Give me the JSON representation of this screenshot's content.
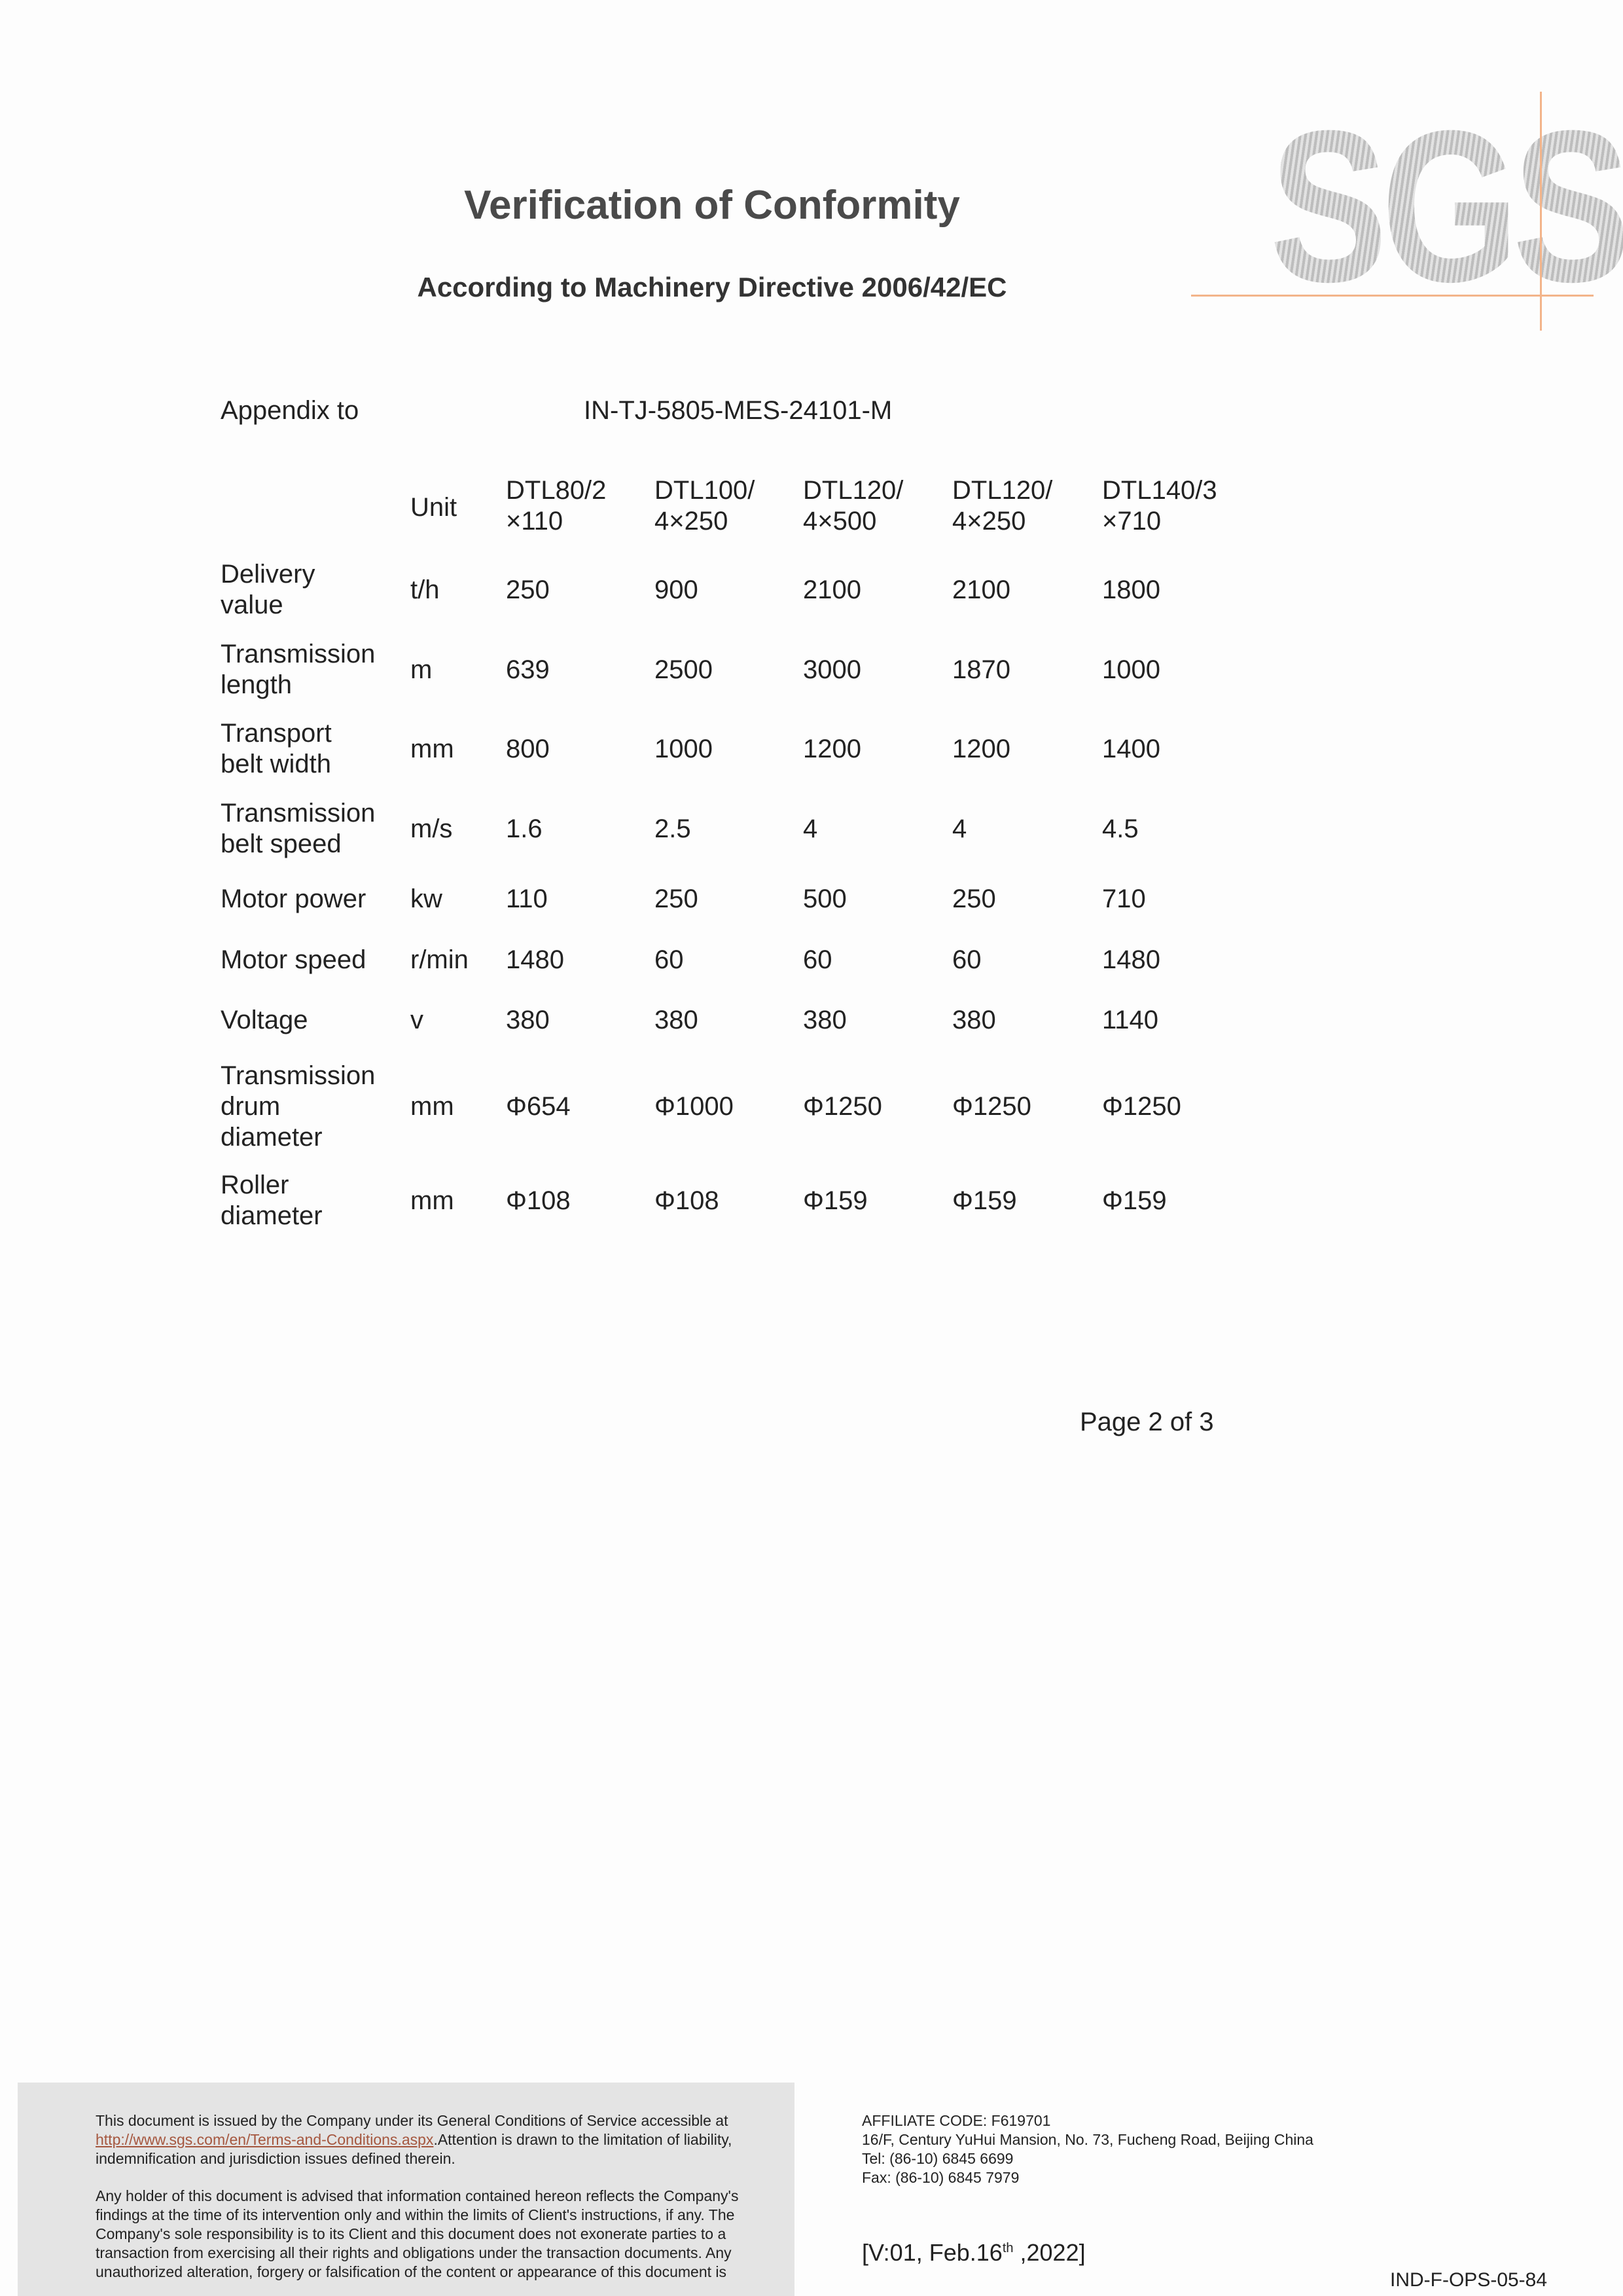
{
  "logo": {
    "text": "SGS",
    "accent": "#f3b48a"
  },
  "header": {
    "title": "Verification of Conformity",
    "subtitle": "According to Machinery Directive 2006/42/EC"
  },
  "appendix": {
    "label": "Appendix to",
    "value": "IN-TJ-5805-MES-24101-M"
  },
  "table": {
    "unit_header": "Unit",
    "columns": [
      {
        "line1": "DTL80/2",
        "line2": "×110"
      },
      {
        "line1": "DTL100/",
        "line2": "4×250"
      },
      {
        "line1": "DTL120/",
        "line2": "4×500"
      },
      {
        "line1": "DTL120/",
        "line2": "4×250"
      },
      {
        "line1": "DTL140/3",
        "line2": "×710"
      }
    ],
    "rows": [
      {
        "label": [
          "Delivery",
          "value"
        ],
        "unit": "t/h",
        "values": [
          "250",
          "900",
          "2100",
          "2100",
          "1800"
        ]
      },
      {
        "label": [
          "Transmission",
          "length"
        ],
        "unit": "m",
        "values": [
          "639",
          "2500",
          "3000",
          "1870",
          "1000"
        ]
      },
      {
        "label": [
          "Transport",
          "belt width"
        ],
        "unit": "mm",
        "values": [
          "800",
          "1000",
          "1200",
          "1200",
          "1400"
        ]
      },
      {
        "label": [
          "Transmission",
          "belt speed"
        ],
        "unit": "m/s",
        "values": [
          "1.6",
          "2.5",
          "4",
          "4",
          "4.5"
        ]
      },
      {
        "label": [
          "Motor power"
        ],
        "unit": "kw",
        "values": [
          "110",
          "250",
          "500",
          "250",
          "710"
        ]
      },
      {
        "label": [
          "Motor speed"
        ],
        "unit": "r/min",
        "values": [
          "1480",
          "60",
          "60",
          "60",
          "1480"
        ]
      },
      {
        "label": [
          "Voltage"
        ],
        "unit": "v",
        "values": [
          "380",
          "380",
          "380",
          "380",
          "1140"
        ]
      },
      {
        "label": [
          "Transmission",
          "drum",
          "diameter"
        ],
        "unit": "mm",
        "values": [
          "Φ654",
          "Φ1000",
          "Φ1250",
          "Φ1250",
          "Φ1250"
        ]
      },
      {
        "label": [
          "Roller",
          "diameter"
        ],
        "unit": "mm",
        "values": [
          "Φ108",
          "Φ108",
          "Φ159",
          "Φ159",
          "Φ159"
        ]
      }
    ]
  },
  "page": "Page 2 of 3",
  "footer": {
    "p1_before": "This document is issued by the Company under its General Conditions of Service accessible at ",
    "p1_link": "http://www.sgs.com/en/Terms-and-Conditions.aspx",
    "p1_after": ".Attention is drawn to the limitation of liability, indemnification and jurisdiction issues defined therein.",
    "p2": "Any holder of this document is advised that information contained hereon reflects the Company's findings at the time of its intervention only and within the limits of Client's instructions, if any. The Company's sole responsibility is to its Client and this document does not exonerate parties to a transaction from exercising all their rights and obligations under the transaction documents. Any unauthorized alteration, forgery or falsification of the content or appearance of this document is unlawful, and offenders may be prosecuted to the fullest extent of the law.",
    "affiliate": "AFFILIATE CODE: F619701",
    "address": "16/F, Century YuHui Mansion, No. 73, Fucheng Road, Beijing China",
    "tel": "Tel: (86-10) 6845 6699",
    "fax": "Fax: (86-10) 6845 7979",
    "version_pre": "[V:01, Feb.16",
    "version_sup": "th",
    "version_post": " ,2022]",
    "form_code": "IND-F-OPS-05-84"
  }
}
